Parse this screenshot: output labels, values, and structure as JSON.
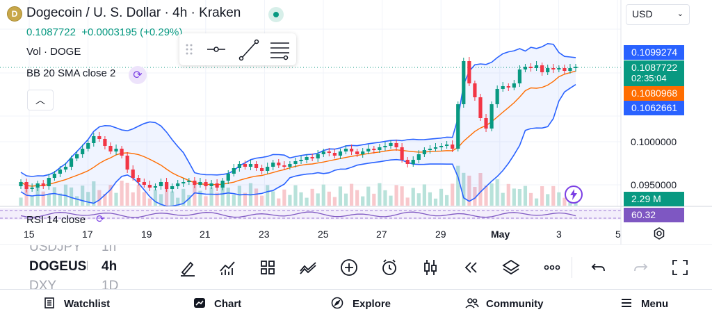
{
  "header": {
    "title": "Dogecoin / U. S. Dollar · 4h · Kraken",
    "price": "0.1087722",
    "change": "+0.0003195 (+0.29%)",
    "volume_label": "Vol · DOGE",
    "bb_label": "BB 20 SMA close 2",
    "currency": "USD"
  },
  "price_labels": {
    "upper": "0.1099274",
    "last": "0.1087722",
    "countdown": "02:35:04",
    "middle": "0.1080968",
    "lower": "0.1062661",
    "level_1": "0.1000000",
    "level_2": "0.0950000",
    "volume": "2.29 M",
    "rsi": "60.32"
  },
  "colors": {
    "up": "#089981",
    "down": "#f23645",
    "band": "#2962ff",
    "basis": "#ff6d00",
    "rsi": "#7e57c2",
    "accent": "#2962ff"
  },
  "rsi_label": "RSI 14 close",
  "x_axis": [
    "15",
    "17",
    "19",
    "21",
    "23",
    "25",
    "27",
    "29",
    "May",
    "3",
    "5"
  ],
  "symbols": [
    {
      "name": "USDJPY",
      "interval": "1h"
    },
    {
      "name": "DOGEUSD",
      "interval": "4h"
    },
    {
      "name": "DXY",
      "interval": "1D"
    }
  ],
  "toolbar_icons": [
    "brush-icon",
    "indicators-icon",
    "layout-icon",
    "compare-icon",
    "add-icon",
    "alert-icon",
    "candle-style-icon",
    "replay-icon",
    "layers-icon",
    "more-icon",
    "undo-icon",
    "redo-icon",
    "fullscreen-icon"
  ],
  "nav": [
    {
      "label": "Watchlist",
      "icon": "watchlist-icon"
    },
    {
      "label": "Chart",
      "icon": "chart-icon"
    },
    {
      "label": "Explore",
      "icon": "explore-icon"
    },
    {
      "label": "Community",
      "icon": "community-icon"
    },
    {
      "label": "Menu",
      "icon": "menu-icon"
    }
  ]
}
